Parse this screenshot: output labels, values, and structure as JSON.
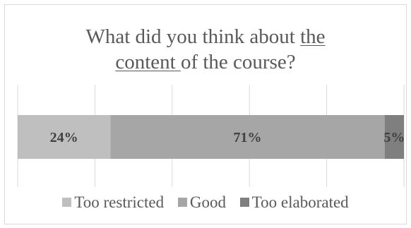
{
  "chart_data": {
    "type": "bar",
    "orientation": "horizontal",
    "stacked": true,
    "title": {
      "part1": "What did you think about ",
      "part2": "the",
      "part3": "content ",
      "part4": "of the course?"
    },
    "xlim": [
      0,
      100
    ],
    "grid": true,
    "legend_position": "bottom",
    "series": [
      {
        "name": "Too restricted",
        "value": 24,
        "label": "24%",
        "color": "#bfbfbf"
      },
      {
        "name": "Good",
        "value": 71,
        "label": "71%",
        "color": "#a6a6a6"
      },
      {
        "name": "Too elaborated",
        "value": 5,
        "label": "5%",
        "color": "#7f7f7f"
      }
    ]
  }
}
